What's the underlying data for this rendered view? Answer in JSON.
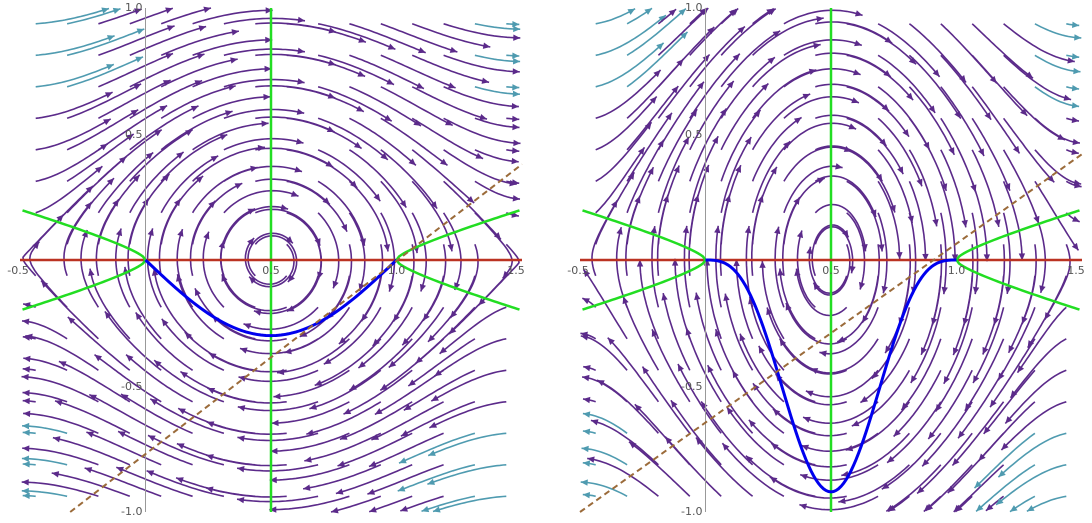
{
  "chart_data": [
    {
      "type": "stream",
      "xlim": [
        -0.5,
        1.5
      ],
      "ylim": [
        -1.0,
        1.0
      ],
      "x_ticks": [
        "-0.5",
        "0.5",
        "1.0",
        "1.5"
      ],
      "y_ticks": [
        "1.0",
        "0.5",
        "-0.5",
        "-1.0"
      ],
      "grid": false,
      "colors": {
        "streamline": "#5b2a8a",
        "separatrix": "#22dd22",
        "nullcline_h": "#bb3322",
        "nullcline_v": "#22dd22",
        "trajectory": "#0000ee",
        "dashed": "#9b6b3a"
      },
      "field": {
        "a": 1.0,
        "m": 1.0
      },
      "equilibria": [
        [
          -0.0,
          0.0
        ],
        [
          0.5,
          0.0
        ],
        [
          1.0,
          0.0
        ]
      ],
      "trajectory_min_y": -0.3,
      "dashed_line": {
        "from": [
          -0.3,
          -1.0
        ],
        "to": [
          1.5,
          0.38
        ]
      }
    },
    {
      "type": "stream",
      "xlim": [
        -0.5,
        1.5
      ],
      "ylim": [
        -1.0,
        1.0
      ],
      "x_ticks": [
        "-0.5",
        "0.5",
        "1.0",
        "1.5"
      ],
      "y_ticks": [
        "1.0",
        "0.5",
        "-0.5",
        "-1.0"
      ],
      "grid": false,
      "colors": {
        "streamline": "#5b2a8a",
        "separatrix": "#22dd22",
        "nullcline_h": "#bb3322",
        "nullcline_v": "#22dd22",
        "trajectory": "#0000ee",
        "dashed": "#9b6b3a"
      },
      "field": {
        "a": 1.0,
        "m": 1.0
      },
      "equilibria": [
        [
          0.0,
          0.0
        ],
        [
          0.5,
          0.0
        ],
        [
          1.0,
          0.0
        ]
      ],
      "trajectory_min_y": -0.92,
      "dashed_line": {
        "from": [
          -0.5,
          -1.0
        ],
        "to": [
          1.5,
          0.42
        ]
      }
    }
  ]
}
